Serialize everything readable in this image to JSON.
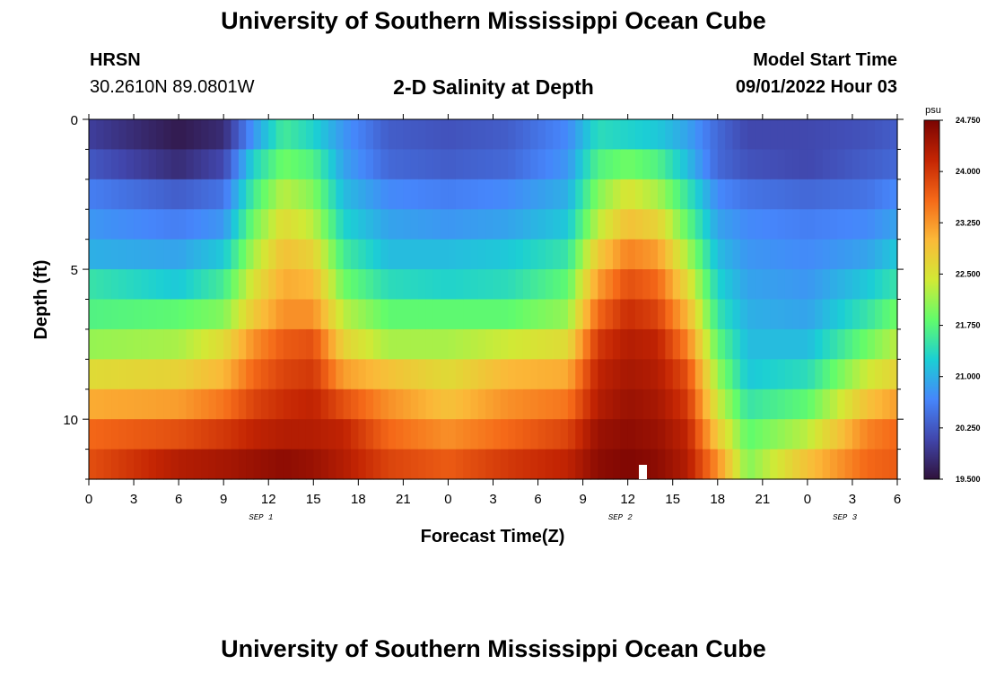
{
  "header": {
    "title": "University of Southern Mississippi Ocean Cube",
    "station": "HRSN",
    "coordinates": "30.2610N  89.0801W",
    "plot_title": "2-D Salinity at Depth",
    "start_label": "Model Start Time",
    "start_value": "09/01/2022 Hour 03"
  },
  "footer": {
    "title": "University of Southern Mississippi Ocean Cube"
  },
  "colors": {
    "scale": [
      "#30123b",
      "#4146ac",
      "#4686fb",
      "#1bcfd4",
      "#62fc6b",
      "#d2e935",
      "#fbb938",
      "#f56918",
      "#c42503",
      "#7a0403"
    ]
  },
  "chart_data": {
    "type": "heatmap",
    "title": "2-D Salinity at Depth",
    "xlabel": "Forecast Time(Z)",
    "ylabel": "Depth (ft)",
    "x_hours_from_start": [
      0,
      54
    ],
    "x_tick_labels": [
      "0",
      "3",
      "6",
      "9",
      "12",
      "15",
      "18",
      "21",
      "0",
      "3",
      "6",
      "9",
      "12",
      "15",
      "18",
      "21",
      "0",
      "3",
      "6"
    ],
    "date_labels": [
      {
        "label": "SEP 1",
        "hour": 11.5
      },
      {
        "label": "SEP 2",
        "hour": 35.5
      },
      {
        "label": "SEP 3",
        "hour": 50.5
      }
    ],
    "ylim": [
      0,
      12
    ],
    "y_tick_labels": [
      {
        "depth": 0,
        "label": "0"
      },
      {
        "depth": 5,
        "label": "5"
      },
      {
        "depth": 10,
        "label": "10"
      }
    ],
    "depth_levels_ft": [
      0.5,
      1.5,
      2.5,
      3.5,
      4.5,
      5.5,
      6.5,
      7.5,
      8.5,
      9.5,
      10.5,
      11.5
    ],
    "colorbar": {
      "unit": "psu",
      "range": [
        19.5,
        24.75
      ],
      "tick_labels": [
        "19.500",
        "20.250",
        "21.000",
        "21.750",
        "22.500",
        "23.250",
        "24.000",
        "24.750"
      ]
    },
    "profiles_psu": [
      {
        "hour": 0,
        "values": [
          20.0,
          20.25,
          20.6,
          20.8,
          21.0,
          21.5,
          21.7,
          22.1,
          22.6,
          23.1,
          23.6,
          23.8
        ]
      },
      {
        "hour": 6,
        "values": [
          19.6,
          19.8,
          20.3,
          20.6,
          20.9,
          21.2,
          21.8,
          22.2,
          22.7,
          23.2,
          23.8,
          24.3
        ]
      },
      {
        "hour": 9,
        "values": [
          19.8,
          20.1,
          20.5,
          20.8,
          21.2,
          21.6,
          22.0,
          22.6,
          23.0,
          23.5,
          24.0,
          24.4
        ]
      },
      {
        "hour": 11,
        "values": [
          20.8,
          21.3,
          21.6,
          21.9,
          22.2,
          22.5,
          22.8,
          23.3,
          23.6,
          23.9,
          24.2,
          24.5
        ]
      },
      {
        "hour": 13,
        "values": [
          21.6,
          21.9,
          22.3,
          22.6,
          22.9,
          23.1,
          23.3,
          23.7,
          23.9,
          24.1,
          24.3,
          24.6
        ]
      },
      {
        "hour": 15,
        "values": [
          21.3,
          21.7,
          22.0,
          22.3,
          22.7,
          23.0,
          23.3,
          23.8,
          24.0,
          24.2,
          24.3,
          24.5
        ]
      },
      {
        "hour": 17,
        "values": [
          20.8,
          20.9,
          21.1,
          21.3,
          21.6,
          21.9,
          22.3,
          22.7,
          23.2,
          23.8,
          24.2,
          24.3
        ]
      },
      {
        "hour": 20,
        "values": [
          20.3,
          20.4,
          20.7,
          20.9,
          21.1,
          21.4,
          21.8,
          22.2,
          22.9,
          23.3,
          23.6,
          23.9
        ]
      },
      {
        "hour": 24,
        "values": [
          20.2,
          20.3,
          20.6,
          20.8,
          21.1,
          21.3,
          21.8,
          22.2,
          22.6,
          22.9,
          23.3,
          23.7
        ]
      },
      {
        "hour": 28,
        "values": [
          20.3,
          20.4,
          20.7,
          20.9,
          21.2,
          21.4,
          21.8,
          22.4,
          23.0,
          23.3,
          23.6,
          24.0
        ]
      },
      {
        "hour": 32,
        "values": [
          20.7,
          20.8,
          21.0,
          21.2,
          21.5,
          21.8,
          22.1,
          22.6,
          23.1,
          23.5,
          23.9,
          24.2
        ]
      },
      {
        "hour": 34,
        "values": [
          21.4,
          21.7,
          22.0,
          22.3,
          22.8,
          23.2,
          23.6,
          24.0,
          24.2,
          24.3,
          24.5,
          24.6
        ]
      },
      {
        "hour": 36,
        "values": [
          21.3,
          21.9,
          22.5,
          22.9,
          23.4,
          23.8,
          24.1,
          24.3,
          24.4,
          24.5,
          24.6,
          24.7
        ]
      },
      {
        "hour": 38,
        "values": [
          21.2,
          21.7,
          22.2,
          22.7,
          23.2,
          23.6,
          23.9,
          24.2,
          24.3,
          24.4,
          24.5,
          24.6
        ]
      },
      {
        "hour": 40,
        "values": [
          20.9,
          21.1,
          21.5,
          21.8,
          22.2,
          22.6,
          23.0,
          23.4,
          23.8,
          24.0,
          24.2,
          24.3
        ]
      },
      {
        "hour": 42,
        "values": [
          20.4,
          20.4,
          20.7,
          20.9,
          21.1,
          21.3,
          21.5,
          21.8,
          22.1,
          22.4,
          22.8,
          23.3
        ]
      },
      {
        "hour": 44,
        "values": [
          20.1,
          20.2,
          20.5,
          20.7,
          20.8,
          20.9,
          21.0,
          21.1,
          21.2,
          21.5,
          21.8,
          22.0
        ]
      },
      {
        "hour": 48,
        "values": [
          20.1,
          20.1,
          20.4,
          20.6,
          20.7,
          20.8,
          20.9,
          21.1,
          21.4,
          21.8,
          22.3,
          22.9
        ]
      },
      {
        "hour": 52,
        "values": [
          20.2,
          20.3,
          20.5,
          20.7,
          20.9,
          21.2,
          21.5,
          21.9,
          22.4,
          22.9,
          23.4,
          23.6
        ]
      },
      {
        "hour": 54,
        "values": [
          20.3,
          20.4,
          20.7,
          20.9,
          21.2,
          21.5,
          21.9,
          22.3,
          22.7,
          23.2,
          23.6,
          23.7
        ]
      }
    ]
  }
}
